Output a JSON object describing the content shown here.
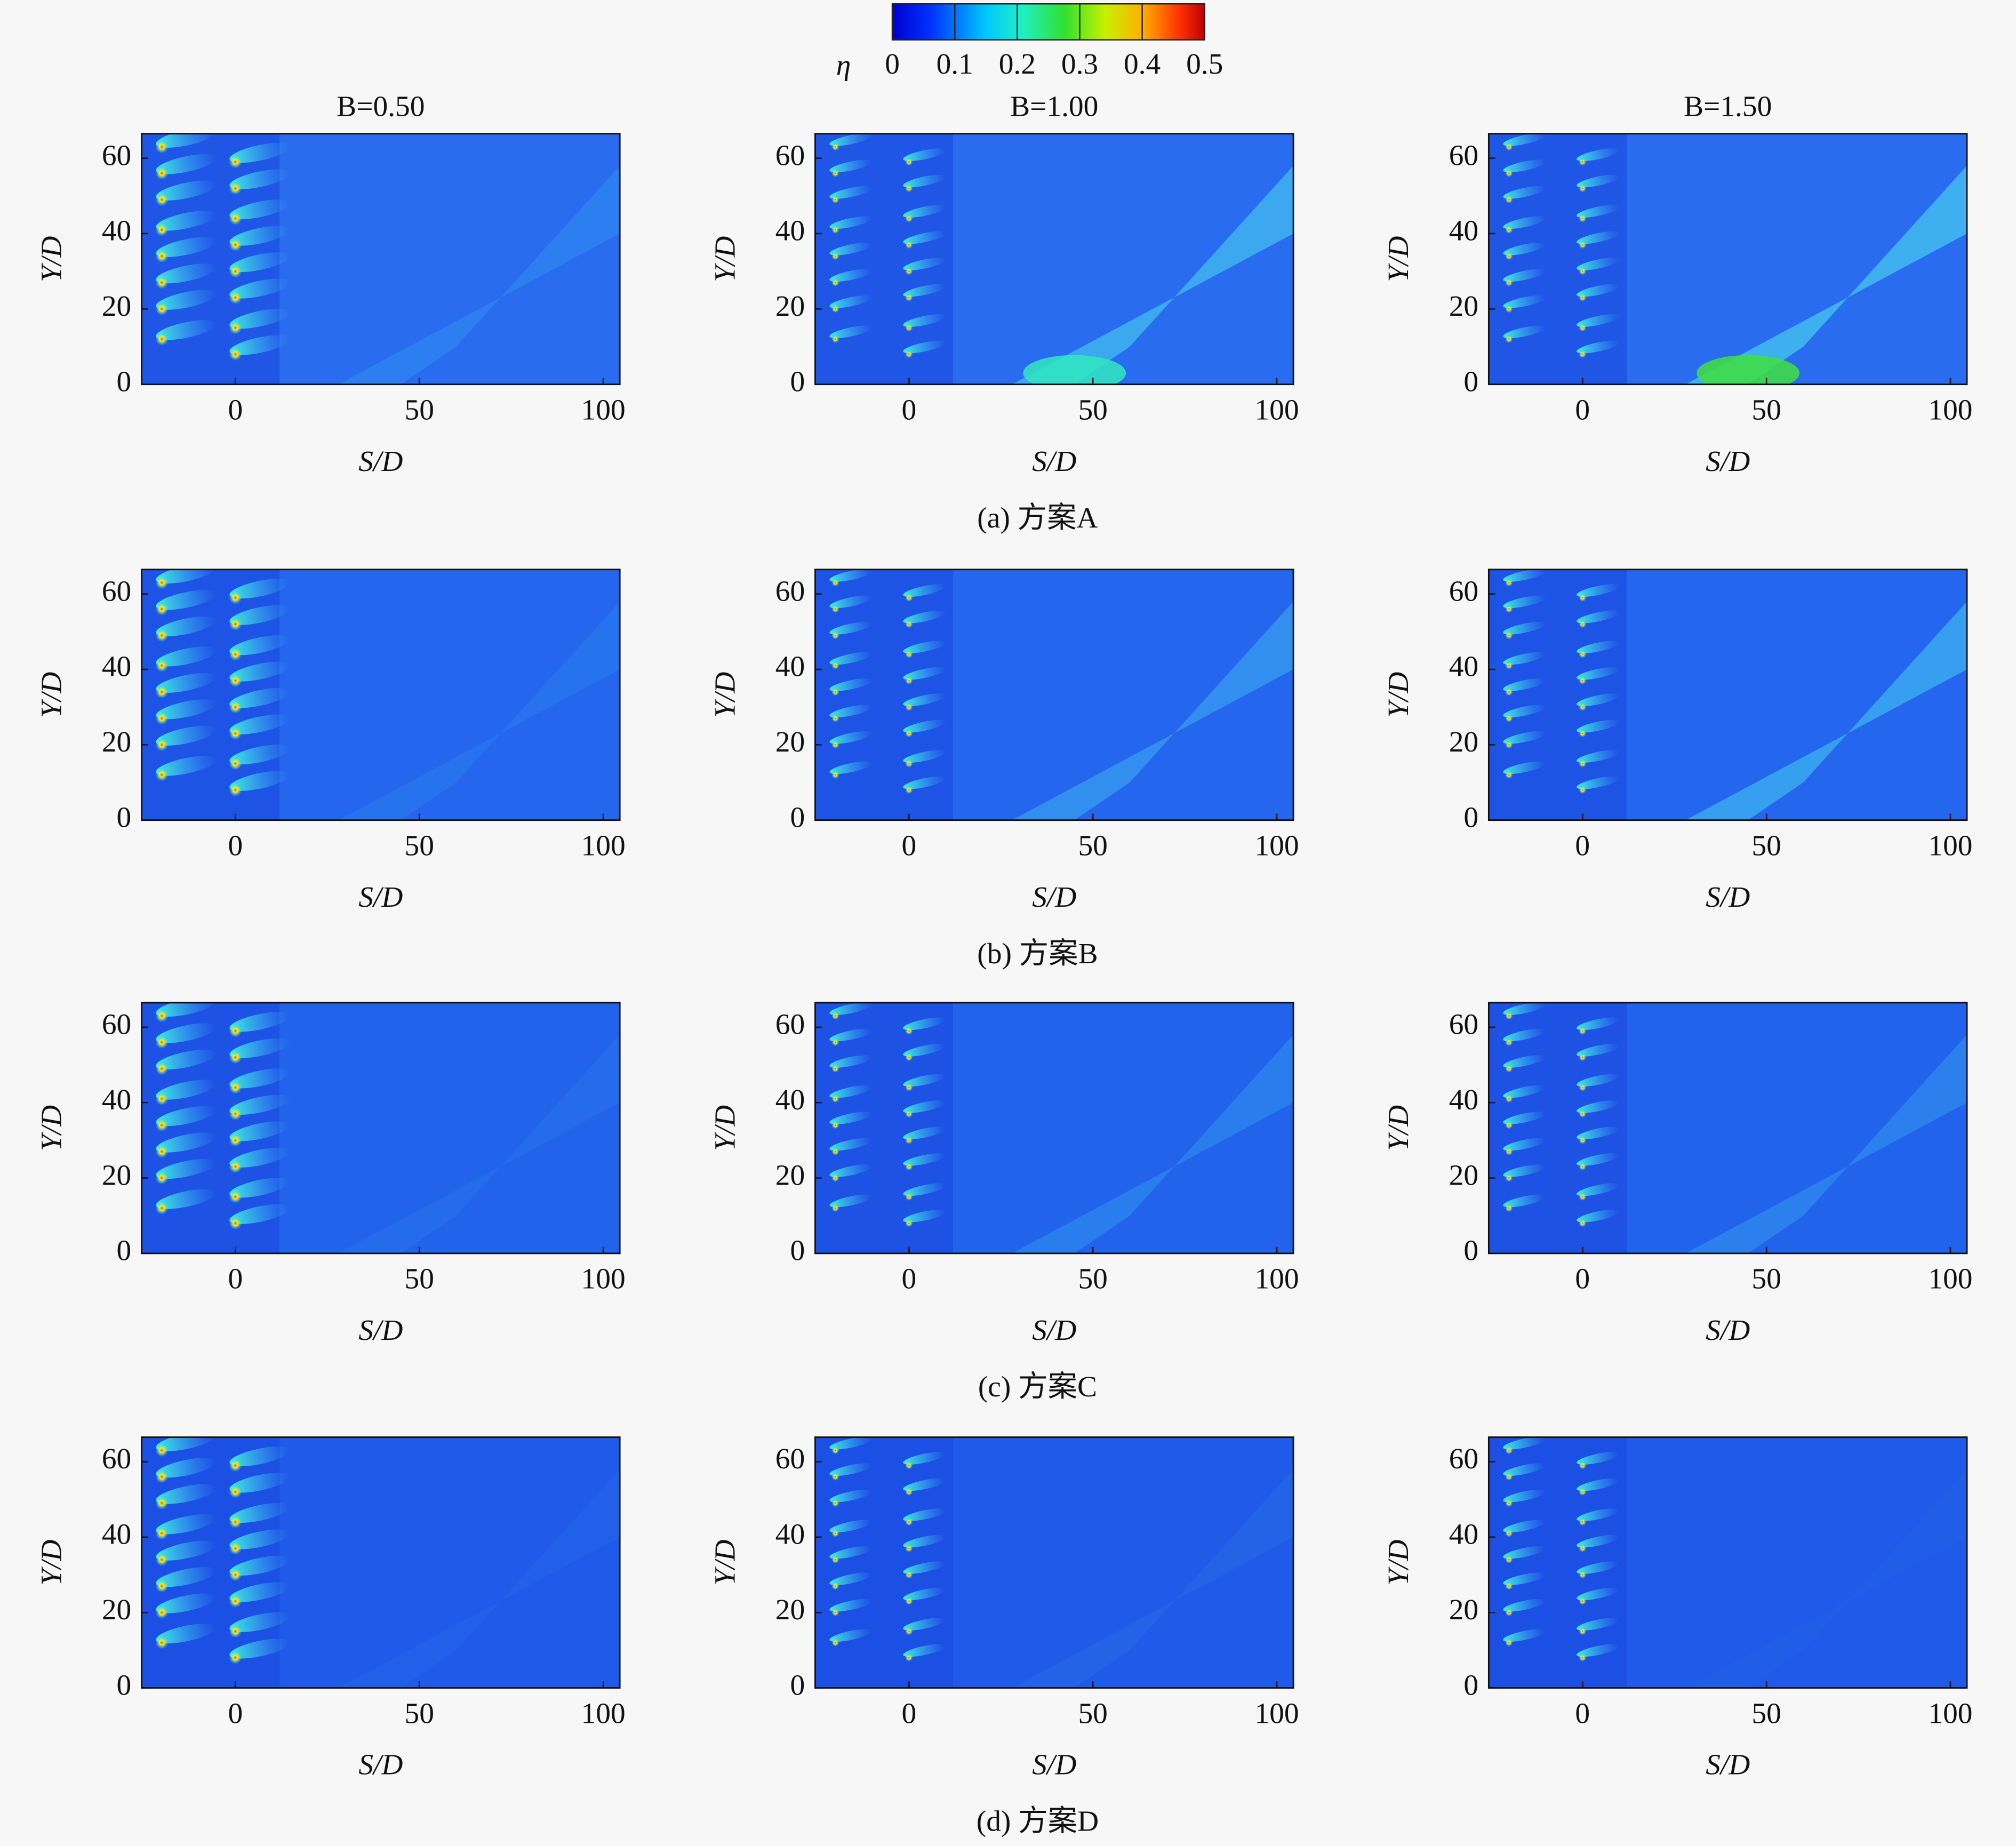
{
  "colorbar": {
    "label": "η",
    "lim": [
      0,
      0.5
    ],
    "ticks": [
      0,
      0.1,
      0.2,
      0.3,
      0.4,
      0.5
    ]
  },
  "captions": [
    "(a) 方案A",
    "(b) 方案B",
    "(c) 方案C",
    "(d) 方案D"
  ],
  "chart_data": [
    {
      "type": "heatmap",
      "title": "B=0.50",
      "x_label": "S/D",
      "y_label": "Y/D",
      "xlim": [
        -25.5,
        104.5
      ],
      "ylim": [
        0,
        66.5
      ],
      "xticks": [
        0,
        50,
        100
      ],
      "yticks": [
        0,
        20,
        40,
        60
      ]
    },
    {
      "type": "heatmap",
      "title": "B=1.00",
      "x_label": "S/D",
      "y_label": "Y/D",
      "xlim": [
        -25.5,
        104.5
      ],
      "ylim": [
        0,
        66.5
      ],
      "xticks": [
        0,
        50,
        100
      ],
      "yticks": [
        0,
        20,
        40,
        60
      ]
    },
    {
      "type": "heatmap",
      "title": "B=1.50",
      "x_label": "S/D",
      "y_label": "Y/D",
      "xlim": [
        -25.5,
        104.5
      ],
      "ylim": [
        0,
        66.5
      ],
      "xticks": [
        0,
        50,
        100
      ],
      "yticks": [
        0,
        20,
        40,
        60
      ]
    },
    {
      "type": "heatmap",
      "x_label": "S/D",
      "y_label": "Y/D",
      "xlim": [
        -25.5,
        104.5
      ],
      "ylim": [
        0,
        66.5
      ],
      "xticks": [
        0,
        50,
        100
      ],
      "yticks": [
        0,
        20,
        40,
        60
      ]
    },
    {
      "type": "heatmap",
      "x_label": "S/D",
      "y_label": "Y/D",
      "xlim": [
        -25.5,
        104.5
      ],
      "ylim": [
        0,
        66.5
      ],
      "xticks": [
        0,
        50,
        100
      ],
      "yticks": [
        0,
        20,
        40,
        60
      ]
    },
    {
      "type": "heatmap",
      "x_label": "S/D",
      "y_label": "Y/D",
      "xlim": [
        -25.5,
        104.5
      ],
      "ylim": [
        0,
        66.5
      ],
      "xticks": [
        0,
        50,
        100
      ],
      "yticks": [
        0,
        20,
        40,
        60
      ]
    },
    {
      "type": "heatmap",
      "x_label": "S/D",
      "y_label": "Y/D",
      "xlim": [
        -25.5,
        104.5
      ],
      "ylim": [
        0,
        66.5
      ],
      "xticks": [
        0,
        50,
        100
      ],
      "yticks": [
        0,
        20,
        40,
        60
      ]
    },
    {
      "type": "heatmap",
      "x_label": "S/D",
      "y_label": "Y/D",
      "xlim": [
        -25.5,
        104.5
      ],
      "ylim": [
        0,
        66.5
      ],
      "xticks": [
        0,
        50,
        100
      ],
      "yticks": [
        0,
        20,
        40,
        60
      ]
    },
    {
      "type": "heatmap",
      "x_label": "S/D",
      "y_label": "Y/D",
      "xlim": [
        -25.5,
        104.5
      ],
      "ylim": [
        0,
        66.5
      ],
      "xticks": [
        0,
        50,
        100
      ],
      "yticks": [
        0,
        20,
        40,
        60
      ]
    },
    {
      "type": "heatmap",
      "x_label": "S/D",
      "y_label": "Y/D",
      "xlim": [
        -25.5,
        104.5
      ],
      "ylim": [
        0,
        66.5
      ],
      "xticks": [
        0,
        50,
        100
      ],
      "yticks": [
        0,
        20,
        40,
        60
      ]
    },
    {
      "type": "heatmap",
      "x_label": "S/D",
      "y_label": "Y/D",
      "xlim": [
        -25.5,
        104.5
      ],
      "ylim": [
        0,
        66.5
      ],
      "xticks": [
        0,
        50,
        100
      ],
      "yticks": [
        0,
        20,
        40,
        60
      ]
    },
    {
      "type": "heatmap",
      "x_label": "S/D",
      "y_label": "Y/D",
      "xlim": [
        -25.5,
        104.5
      ],
      "ylim": [
        0,
        66.5
      ],
      "xticks": [
        0,
        50,
        100
      ],
      "yticks": [
        0,
        20,
        40,
        60
      ]
    }
  ]
}
